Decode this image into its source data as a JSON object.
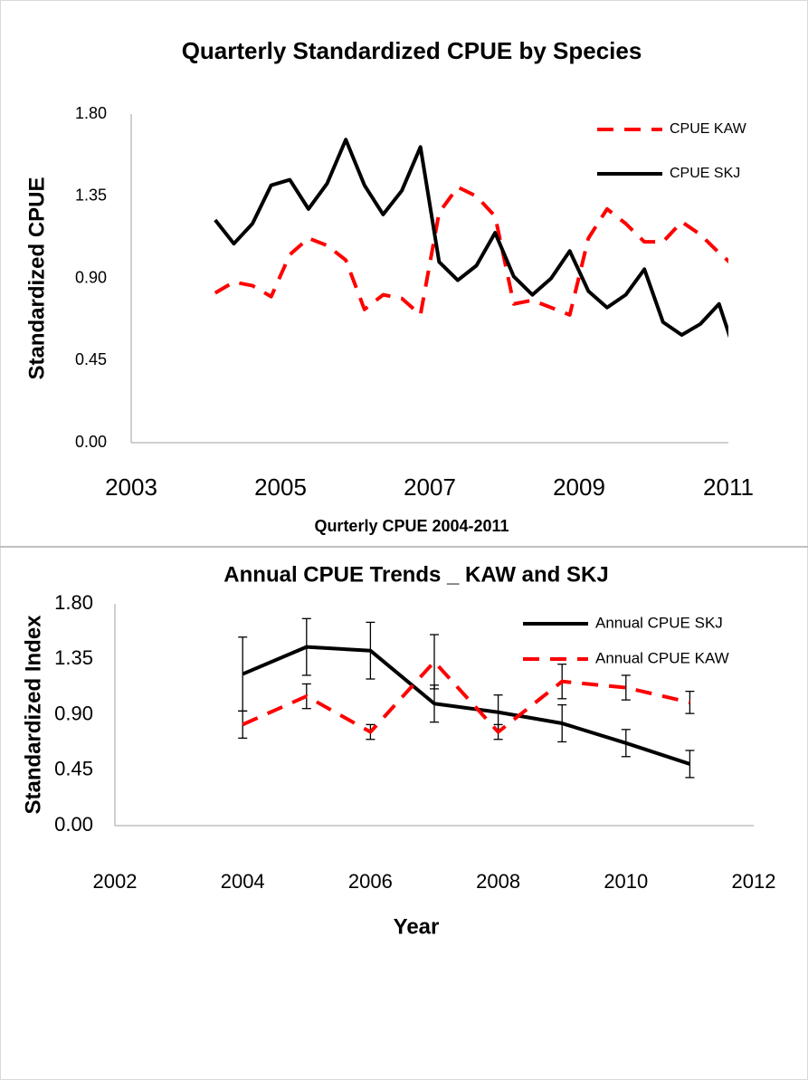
{
  "chart_data": [
    {
      "type": "line",
      "title": "Quarterly Standardized CPUE by Species",
      "ylabel": "Standardized CPUE",
      "xlabel": "Qurterly CPUE 2004-2011",
      "x": [
        2004.125,
        2004.375,
        2004.625,
        2004.875,
        2005.125,
        2005.375,
        2005.625,
        2005.875,
        2006.125,
        2006.375,
        2006.625,
        2006.875,
        2007.125,
        2007.375,
        2007.625,
        2007.875,
        2008.125,
        2008.375,
        2008.625,
        2008.875,
        2009.125,
        2009.375,
        2009.625,
        2009.875,
        2010.125,
        2010.375,
        2010.625,
        2010.875,
        2011.125
      ],
      "series": [
        {
          "name": "CPUE KAW",
          "color": "#ff0000",
          "dashed": true,
          "values": [
            0.82,
            0.88,
            0.86,
            0.8,
            1.03,
            1.12,
            1.08,
            1.0,
            0.73,
            0.81,
            0.79,
            0.7,
            1.26,
            1.4,
            1.35,
            1.24,
            0.76,
            0.78,
            0.74,
            0.7,
            1.12,
            1.28,
            1.2,
            1.1,
            1.1,
            1.21,
            1.14,
            1.04,
            0.95
          ]
        },
        {
          "name": "CPUE SKJ",
          "color": "#000000",
          "dashed": false,
          "values": [
            1.22,
            1.09,
            1.2,
            1.41,
            1.44,
            1.28,
            1.42,
            1.66,
            1.41,
            1.25,
            1.38,
            1.62,
            0.99,
            0.89,
            0.97,
            1.15,
            0.91,
            0.81,
            0.9,
            1.05,
            0.83,
            0.74,
            0.81,
            0.95,
            0.66,
            0.59,
            0.65,
            0.76,
            0.45
          ]
        }
      ],
      "xlim": [
        2003,
        2011
      ],
      "xticks": [
        2003,
        2005,
        2007,
        2009,
        2011
      ],
      "ylim": [
        0,
        1.8
      ],
      "yticks": [
        {
          "value": 0,
          "label": "0.00"
        },
        {
          "value": 0.45,
          "label": "0.45"
        },
        {
          "value": 0.9,
          "label": "0.90"
        },
        {
          "value": 1.35,
          "label": "1.35"
        },
        {
          "value": 1.8,
          "label": "1.80"
        }
      ],
      "legend": "upper right",
      "grid": false
    },
    {
      "type": "line",
      "title": "Annual CPUE Trends _ KAW and SKJ",
      "ylabel": "Standardized Index",
      "xlabel": "Year",
      "x": [
        2004,
        2005,
        2006,
        2007,
        2008,
        2009,
        2010,
        2011
      ],
      "series": [
        {
          "name": "Annual CPUE SKJ",
          "color": "#000000",
          "dashed": false,
          "values": [
            1.23,
            1.45,
            1.42,
            0.99,
            0.92,
            0.83,
            0.67,
            0.5
          ],
          "errors": [
            0.3,
            0.23,
            0.23,
            0.15,
            0.14,
            0.15,
            0.11,
            0.11
          ]
        },
        {
          "name": "Annual CPUE KAW",
          "color": "#ff0000",
          "dashed": true,
          "values": [
            0.82,
            1.05,
            0.76,
            1.33,
            0.76,
            1.17,
            1.12,
            1.0
          ],
          "errors": [
            0.11,
            0.1,
            0.06,
            0.22,
            0.06,
            0.14,
            0.1,
            0.09
          ]
        }
      ],
      "xlim": [
        2002,
        2012
      ],
      "xticks": [
        2002,
        2004,
        2006,
        2008,
        2010,
        2012
      ],
      "ylim": [
        0,
        1.8
      ],
      "yticks": [
        {
          "value": 0,
          "label": "0.00"
        },
        {
          "value": 0.45,
          "label": "0.45"
        },
        {
          "value": 0.9,
          "label": "0.90"
        },
        {
          "value": 1.35,
          "label": "1.35"
        },
        {
          "value": 1.8,
          "label": "1.80"
        }
      ],
      "legend": "upper right",
      "grid": false
    }
  ]
}
